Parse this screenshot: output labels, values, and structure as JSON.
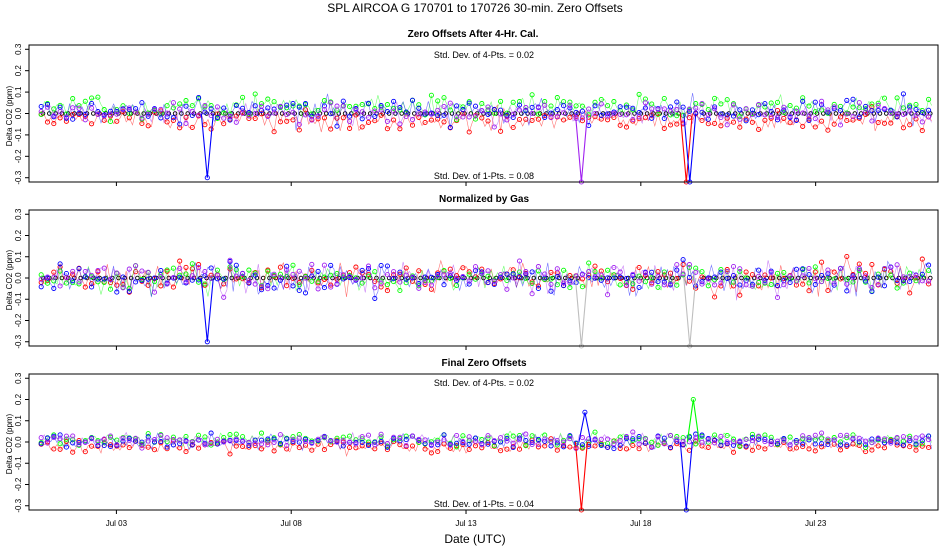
{
  "title": "SPL   AIRCOA G   170701 to 170726   30-min. Zero Offsets",
  "xlabel": "Date (UTC)",
  "ylabel": "Delta CO2 (ppm)",
  "x_ticks": [
    "Jul 03",
    "Jul 08",
    "Jul 13",
    "Jul 18",
    "Jul 23"
  ],
  "y_ticks": [
    "-0.3",
    "-0.2",
    "-0.1",
    "0.0",
    "0.1",
    "0.2",
    "0.3"
  ],
  "colors": {
    "red": "#ff0000",
    "green": "#00ff00",
    "blue": "#0000ff",
    "magenta": "#a020f0",
    "gray": "#bebebe",
    "black": "#000000"
  },
  "chart_data": [
    {
      "type": "scatter",
      "title": "Zero Offsets After 4-Hr. Cal.",
      "annotation_top": "Std. Dev. of 4-Pts. =  0.02",
      "annotation_bottom": "Std. Dev. of 1-Pts. =  0.08",
      "xlabel": "",
      "ylabel": "Delta CO2 (ppm)",
      "xlim": [
        0,
        26
      ],
      "ylim": [
        -0.32,
        0.32
      ],
      "x_tick_days": [
        2.5,
        7.5,
        12.5,
        17.5,
        22.5
      ],
      "series": [
        {
          "name": "red",
          "bias": -0.03,
          "spread": 0.05
        },
        {
          "name": "green",
          "bias": 0.03,
          "spread": 0.05
        },
        {
          "name": "blue",
          "bias": 0.01,
          "spread": 0.06
        },
        {
          "name": "magenta",
          "bias": 0.0,
          "spread": 0.05
        }
      ],
      "reference_series": {
        "name": "black",
        "value": 0.0
      },
      "spikes": [
        {
          "day": 5.1,
          "value": -0.3,
          "series": "blue"
        },
        {
          "day": 15.8,
          "value": -0.32,
          "series": "magenta"
        },
        {
          "day": 18.8,
          "value": -0.32,
          "series": "red"
        },
        {
          "day": 18.9,
          "value": -0.32,
          "series": "blue"
        }
      ]
    },
    {
      "type": "scatter",
      "title": "Normalized by Gas",
      "annotation_top": "",
      "annotation_bottom": "",
      "xlabel": "",
      "ylabel": "Delta CO2 (ppm)",
      "xlim": [
        0,
        26
      ],
      "ylim": [
        -0.32,
        0.32
      ],
      "x_tick_days": [
        2.5,
        7.5,
        12.5,
        17.5,
        22.5
      ],
      "series": [
        {
          "name": "red",
          "bias": 0.0,
          "spread": 0.07
        },
        {
          "name": "green",
          "bias": 0.0,
          "spread": 0.06
        },
        {
          "name": "blue",
          "bias": 0.0,
          "spread": 0.07
        },
        {
          "name": "magenta",
          "bias": 0.0,
          "spread": 0.07
        }
      ],
      "reference_series": {
        "name": "black",
        "value": 0.0
      },
      "spikes": [
        {
          "day": 5.1,
          "value": -0.3,
          "series": "blue"
        },
        {
          "day": 15.8,
          "value": -0.32,
          "series": "gray"
        },
        {
          "day": 18.9,
          "value": -0.32,
          "series": "gray"
        }
      ]
    },
    {
      "type": "scatter",
      "title": "Final Zero Offsets",
      "annotation_top": "Std. Dev. of 4-Pts. =  0.02",
      "annotation_bottom": "Std. Dev. of 1-Pts. =  0.04",
      "xlabel": "Date (UTC)",
      "ylabel": "Delta CO2 (ppm)",
      "xlim": [
        0,
        26
      ],
      "ylim": [
        -0.32,
        0.32
      ],
      "x_tick_days": [
        2.5,
        7.5,
        12.5,
        17.5,
        22.5
      ],
      "series": [
        {
          "name": "red",
          "bias": -0.02,
          "spread": 0.03
        },
        {
          "name": "green",
          "bias": 0.01,
          "spread": 0.03
        },
        {
          "name": "blue",
          "bias": 0.0,
          "spread": 0.03
        },
        {
          "name": "magenta",
          "bias": 0.01,
          "spread": 0.03
        }
      ],
      "reference_series": null,
      "spikes": [
        {
          "day": 15.8,
          "value": -0.32,
          "series": "red"
        },
        {
          "day": 15.9,
          "value": 0.14,
          "series": "blue"
        },
        {
          "day": 18.8,
          "value": -0.32,
          "series": "blue"
        },
        {
          "day": 19.0,
          "value": 0.2,
          "series": "green"
        }
      ]
    }
  ]
}
